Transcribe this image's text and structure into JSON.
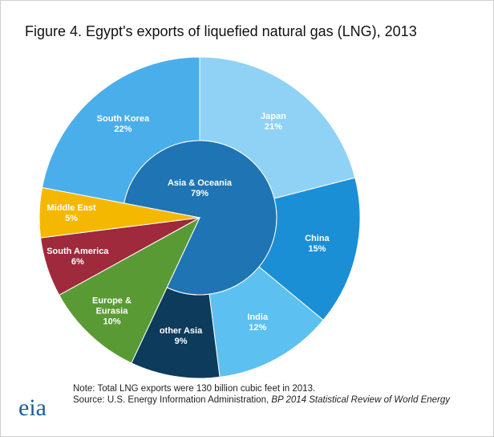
{
  "chart_data": {
    "type": "sunburst",
    "title": "Figure 4. Egypt's exports of liquefied natural gas (LNG), 2013",
    "groups": [
      {
        "name": "Asia & Oceania",
        "value": 79,
        "value_label": "79%",
        "color": "#1f74b4",
        "children": [
          {
            "name": "South Korea",
            "value": 22,
            "value_label": "22%",
            "color": "#4aaeea"
          },
          {
            "name": "Japan",
            "value": 21,
            "value_label": "21%",
            "color": "#8fd2f5"
          },
          {
            "name": "China",
            "value": 15,
            "value_label": "15%",
            "color": "#1a8fd6"
          },
          {
            "name": "India",
            "value": 12,
            "value_label": "12%",
            "color": "#5cc0f0"
          },
          {
            "name": "other Asia",
            "value": 9,
            "value_label": "9%",
            "color": "#0d3b5c"
          }
        ]
      },
      {
        "name": "Europe & Eurasia",
        "value": 10,
        "value_label": "10%",
        "color": "#5a9a34"
      },
      {
        "name": "South America",
        "value": 6,
        "value_label": "6%",
        "color": "#9e2a3c"
      },
      {
        "name": "Middle East",
        "value": 5,
        "value_label": "5%",
        "color": "#f5b800"
      }
    ],
    "note": "Note: Total LNG exports were 130 billion cubic feet in 2013.",
    "source": {
      "text": "Source: U.S. Energy Information Administration, ",
      "italic": "BP 2014 Statistical Review of World Energy"
    },
    "logo": "eia"
  }
}
